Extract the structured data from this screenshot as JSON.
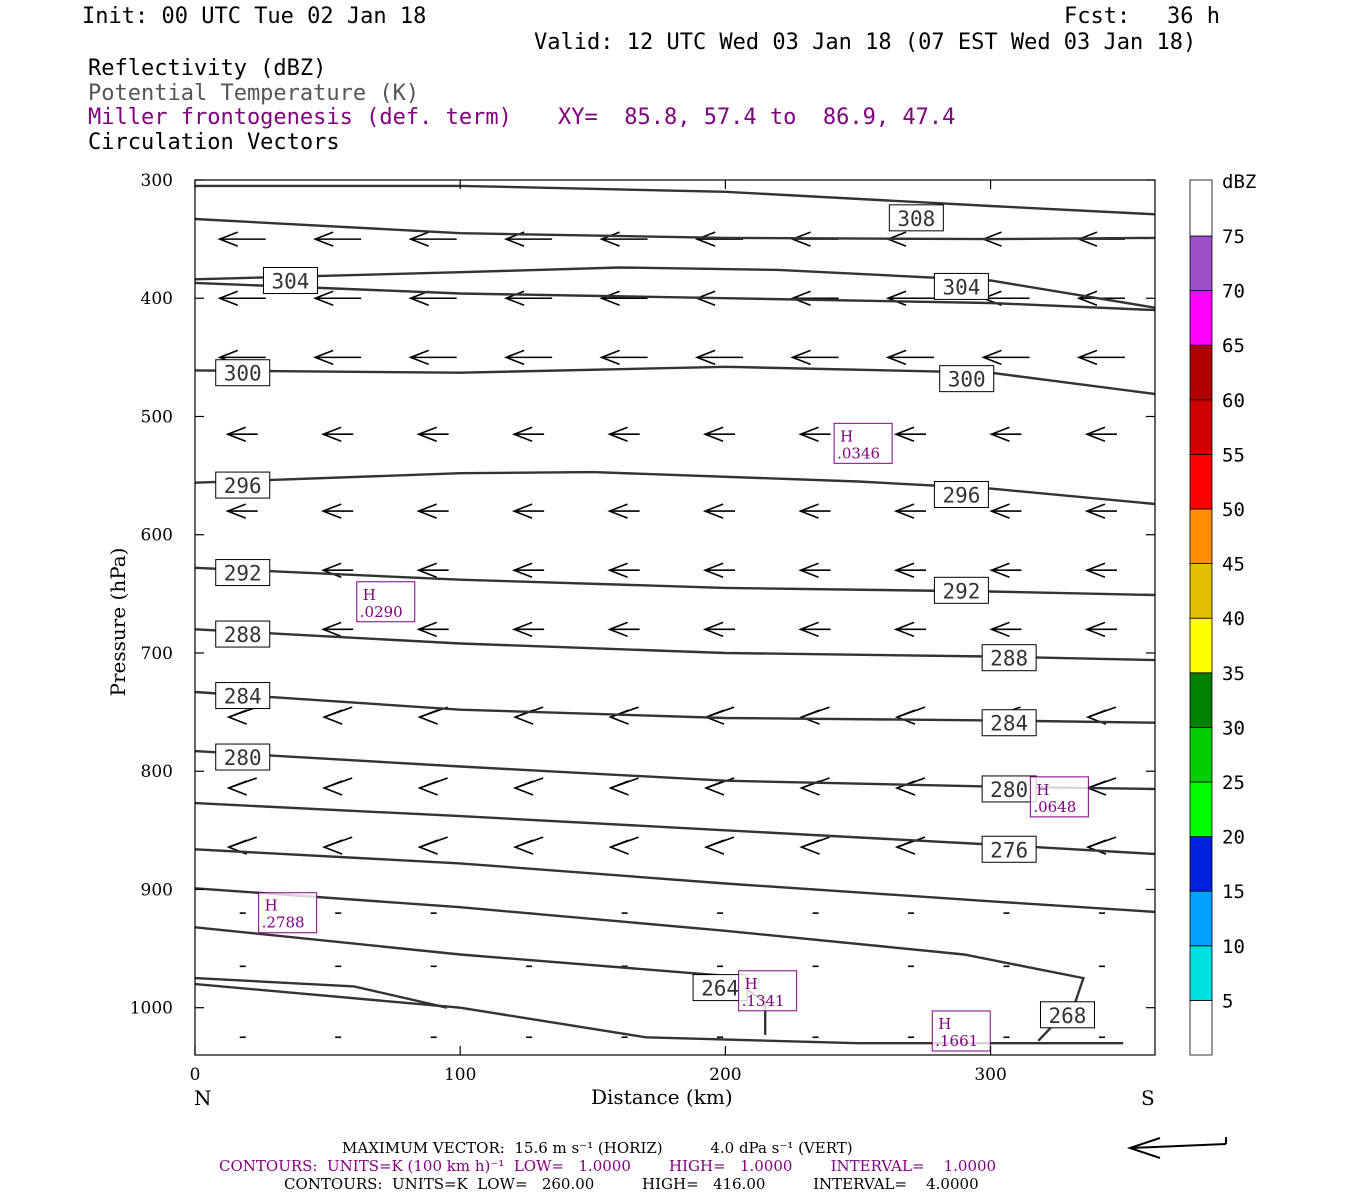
{
  "header": {
    "init": "Init: 00 UTC Tue 02 Jan 18",
    "fcst_label": "Fcst:",
    "fcst_value": "36 h",
    "valid": "Valid: 12 UTC Wed 03 Jan 18 (07 EST Wed 03 Jan 18)"
  },
  "fields": {
    "reflectivity": "Reflectivity (dBZ)",
    "potential_temperature": "Potential Temperature (K)",
    "miller": "Miller frontogenesis (def. term)",
    "xy": "XY=  85.8, 57.4 to  86.9, 47.4",
    "vectors": "Circulation Vectors"
  },
  "colors": {
    "theta": "#333333",
    "frontogenesis": "#800080",
    "text": "#000000"
  },
  "chart_data": {
    "type": "line",
    "xlabel": "Distance (km)",
    "ylabel": "Pressure (hPa)",
    "xlim": [
      0,
      362
    ],
    "ylim": [
      1040,
      300
    ],
    "x_ticks": [
      0,
      100,
      200,
      300
    ],
    "y_ticks": [
      300,
      400,
      500,
      600,
      700,
      800,
      900,
      1000
    ],
    "left_end_label": "N",
    "right_end_label": "S",
    "theta_contours": [
      {
        "value": 308,
        "points": [
          [
            0,
            305
          ],
          [
            100,
            305
          ],
          [
            200,
            310
          ],
          [
            300,
            322
          ],
          [
            362,
            329
          ]
        ]
      },
      {
        "value": null,
        "points": [
          [
            0,
            333
          ],
          [
            100,
            345
          ],
          [
            200,
            349
          ],
          [
            300,
            350
          ],
          [
            362,
            349
          ]
        ]
      },
      {
        "value": 304,
        "points": [
          [
            0,
            384
          ],
          [
            100,
            378
          ],
          [
            160,
            374
          ],
          [
            220,
            376
          ],
          [
            300,
            385
          ],
          [
            362,
            408
          ]
        ]
      },
      {
        "value": null,
        "points": [
          [
            0,
            387
          ],
          [
            100,
            396
          ],
          [
            200,
            400
          ],
          [
            300,
            404
          ],
          [
            362,
            410
          ]
        ]
      },
      {
        "value": 300,
        "points": [
          [
            0,
            461
          ],
          [
            100,
            463
          ],
          [
            200,
            458
          ],
          [
            300,
            463
          ],
          [
            362,
            481
          ]
        ]
      },
      {
        "value": 296,
        "points": [
          [
            0,
            556
          ],
          [
            100,
            548
          ],
          [
            150,
            547
          ],
          [
            250,
            555
          ],
          [
            300,
            561
          ],
          [
            362,
            574
          ]
        ]
      },
      {
        "value": 292,
        "points": [
          [
            0,
            628
          ],
          [
            100,
            638
          ],
          [
            200,
            645
          ],
          [
            300,
            648
          ],
          [
            362,
            651
          ]
        ]
      },
      {
        "value": 288,
        "points": [
          [
            0,
            680
          ],
          [
            100,
            692
          ],
          [
            200,
            700
          ],
          [
            300,
            703
          ],
          [
            362,
            706
          ]
        ]
      },
      {
        "value": 284,
        "points": [
          [
            0,
            733
          ],
          [
            100,
            748
          ],
          [
            200,
            755
          ],
          [
            300,
            757
          ],
          [
            362,
            759
          ]
        ]
      },
      {
        "value": 280,
        "points": [
          [
            0,
            783
          ],
          [
            100,
            796
          ],
          [
            200,
            808
          ],
          [
            300,
            813
          ],
          [
            362,
            815
          ]
        ]
      },
      {
        "value": 276,
        "points": [
          [
            0,
            827
          ],
          [
            100,
            838
          ],
          [
            200,
            850
          ],
          [
            300,
            862
          ],
          [
            362,
            870
          ]
        ]
      },
      {
        "value": null,
        "points": [
          [
            0,
            866
          ],
          [
            100,
            878
          ],
          [
            200,
            895
          ],
          [
            300,
            910
          ],
          [
            362,
            919
          ]
        ]
      },
      {
        "value": 268,
        "points": [
          [
            0,
            899
          ],
          [
            100,
            915
          ],
          [
            200,
            935
          ],
          [
            290,
            955
          ],
          [
            335,
            975
          ],
          [
            332,
            995
          ],
          [
            318,
            1028
          ]
        ]
      },
      {
        "value": 264,
        "points": [
          [
            0,
            932
          ],
          [
            100,
            955
          ],
          [
            200,
            973
          ],
          [
            215,
            995
          ],
          [
            215,
            1023
          ]
        ]
      },
      {
        "value": null,
        "points": [
          [
            0,
            975
          ],
          [
            60,
            982
          ],
          [
            95,
            1000
          ]
        ]
      },
      {
        "value": null,
        "points": [
          [
            0,
            980
          ],
          [
            100,
            1000
          ],
          [
            170,
            1025
          ],
          [
            250,
            1030
          ],
          [
            350,
            1030
          ]
        ]
      }
    ],
    "theta_labels": [
      {
        "value": "308",
        "x": 272,
        "p": 332
      },
      {
        "value": "304",
        "x": 36,
        "p": 385
      },
      {
        "value": "304",
        "x": 289,
        "p": 390
      },
      {
        "value": "300",
        "x": 18,
        "p": 463
      },
      {
        "value": "300",
        "x": 291,
        "p": 468
      },
      {
        "value": "296",
        "x": 18,
        "p": 558
      },
      {
        "value": "296",
        "x": 289,
        "p": 566
      },
      {
        "value": "292",
        "x": 18,
        "p": 632
      },
      {
        "value": "292",
        "x": 289,
        "p": 647
      },
      {
        "value": "288",
        "x": 18,
        "p": 684
      },
      {
        "value": "288",
        "x": 307,
        "p": 704
      },
      {
        "value": "284",
        "x": 18,
        "p": 736
      },
      {
        "value": "284",
        "x": 307,
        "p": 759
      },
      {
        "value": "280",
        "x": 18,
        "p": 788
      },
      {
        "value": "280",
        "x": 307,
        "p": 815
      },
      {
        "value": "276",
        "x": 307,
        "p": 866
      },
      {
        "value": "268",
        "x": 329,
        "p": 1006
      },
      {
        "value": "264",
        "x": 198,
        "p": 983
      }
    ],
    "frontogenesis_maxima": [
      {
        "label": "H",
        "value": ".0346",
        "x": 241,
        "p": 521
      },
      {
        "label": "H",
        "value": ".0290",
        "x": 61,
        "p": 655
      },
      {
        "label": "H",
        "value": ".0648",
        "x": 315,
        "p": 820
      },
      {
        "label": "H",
        "value": ".2788",
        "x": 24,
        "p": 918
      },
      {
        "label": "H",
        "value": ".1341",
        "x": 205,
        "p": 984
      },
      {
        "label": "H",
        "value": ".1661",
        "x": 278,
        "p": 1018
      }
    ],
    "colorbar": {
      "unit": "dBZ",
      "levels": [
        5,
        10,
        15,
        20,
        25,
        30,
        35,
        40,
        45,
        50,
        55,
        60,
        65,
        70,
        75
      ],
      "colors": [
        "#00e0e0",
        "#00a0ff",
        "#0020e0",
        "#00ff00",
        "#00cc00",
        "#008000",
        "#ffff00",
        "#e0c000",
        "#ff8c00",
        "#ff0000",
        "#d00000",
        "#b00000",
        "#ff00ff",
        "#9a50c8",
        "#ffffff"
      ]
    },
    "vector_rows": [
      350,
      400,
      450,
      515,
      580,
      630,
      680,
      750,
      810,
      860,
      920,
      965,
      1025
    ],
    "vector_columns": [
      0,
      36,
      72,
      108,
      144,
      180,
      216,
      252,
      288,
      324,
      360
    ]
  },
  "footer": {
    "max_vector": "MAXIMUM VECTOR:  15.6 m s⁻¹ (HORIZ)          4.0 dPa s⁻¹ (VERT)",
    "contours_purple": "CONTOURS:  UNITS=K (100 km h)⁻¹  LOW=   1.0000        HIGH=   1.0000        INTERVAL=    1.0000",
    "contours_black": "CONTOURS:  UNITS=K  LOW=   260.00          HIGH=   416.00          INTERVAL=    4.0000"
  }
}
